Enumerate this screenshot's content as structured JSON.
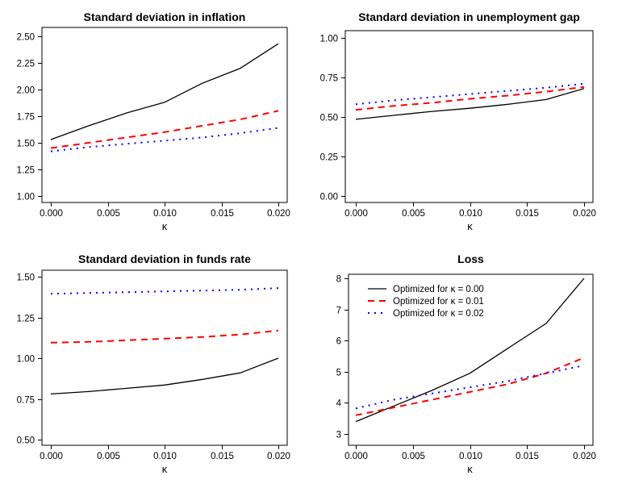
{
  "page": {
    "background": "#ffffff",
    "text_color": "#000000"
  },
  "chart_data": [
    {
      "type": "line",
      "title": "Standard deviation in inflation",
      "xlabel": "κ",
      "xlim": [
        0,
        0.02
      ],
      "ylim": [
        1.0,
        2.5
      ],
      "x_ticks": {
        "values": [
          0,
          0.005,
          0.01,
          0.015,
          0.02
        ],
        "labels": [
          "0.000",
          "0.005",
          "0.010",
          "0.015",
          "0.020"
        ]
      },
      "y_ticks": {
        "values": [
          1.0,
          1.25,
          1.5,
          1.75,
          2.0,
          2.25,
          2.5
        ],
        "labels": [
          "1.00",
          "1.25",
          "1.50",
          "1.75",
          "2.00",
          "2.25",
          "2.50"
        ]
      },
      "x": [
        0,
        0.00333,
        0.00667,
        0.01,
        0.01333,
        0.01667,
        0.02
      ],
      "series": [
        {
          "id": "k000",
          "name": "Optimized for κ = 0.00",
          "color": "#000000",
          "style": "solid",
          "values": [
            1.53,
            1.66,
            1.78,
            1.88,
            2.06,
            2.2,
            2.43
          ]
        },
        {
          "id": "k001",
          "name": "Optimized for κ = 0.01",
          "color": "#ff0000",
          "style": "dashed",
          "values": [
            1.45,
            1.5,
            1.55,
            1.6,
            1.66,
            1.72,
            1.8
          ]
        },
        {
          "id": "k002",
          "name": "Optimized for κ = 0.02",
          "color": "#0000ff",
          "style": "dotted",
          "values": [
            1.42,
            1.46,
            1.49,
            1.52,
            1.55,
            1.59,
            1.64
          ]
        }
      ],
      "legend": null,
      "grid": false
    },
    {
      "type": "line",
      "title": "Standard deviation in unemployment gap",
      "xlabel": "κ",
      "xlim": [
        0,
        0.02
      ],
      "ylim": [
        0.0,
        1.0
      ],
      "x_ticks": {
        "values": [
          0,
          0.005,
          0.01,
          0.015,
          0.02
        ],
        "labels": [
          "0.000",
          "0.005",
          "0.010",
          "0.015",
          "0.020"
        ]
      },
      "y_ticks": {
        "values": [
          0.0,
          0.25,
          0.5,
          0.75,
          1.0
        ],
        "labels": [
          "0.00",
          "0.25",
          "0.50",
          "0.75",
          "1.00"
        ]
      },
      "x": [
        0,
        0.00333,
        0.00667,
        0.01,
        0.01333,
        0.01667,
        0.02
      ],
      "series": [
        {
          "id": "k000",
          "name": "Optimized for κ = 0.00",
          "color": "#000000",
          "style": "solid",
          "values": [
            0.485,
            0.51,
            0.535,
            0.555,
            0.58,
            0.61,
            0.68
          ]
        },
        {
          "id": "k001",
          "name": "Optimized for κ = 0.01",
          "color": "#ff0000",
          "style": "dashed",
          "values": [
            0.545,
            0.57,
            0.59,
            0.615,
            0.635,
            0.66,
            0.69
          ]
        },
        {
          "id": "k002",
          "name": "Optimized for κ = 0.02",
          "color": "#0000ff",
          "style": "dotted",
          "values": [
            0.58,
            0.605,
            0.625,
            0.645,
            0.665,
            0.685,
            0.71
          ]
        }
      ],
      "legend": null,
      "grid": false
    },
    {
      "type": "line",
      "title": "Standard deviation in funds rate",
      "xlabel": "κ",
      "xlim": [
        0,
        0.02
      ],
      "ylim": [
        0.5,
        1.5
      ],
      "x_ticks": {
        "values": [
          0,
          0.005,
          0.01,
          0.015,
          0.02
        ],
        "labels": [
          "0.000",
          "0.005",
          "0.010",
          "0.015",
          "0.020"
        ]
      },
      "y_ticks": {
        "values": [
          0.5,
          0.75,
          1.0,
          1.25,
          1.5
        ],
        "labels": [
          "0.50",
          "0.75",
          "1.00",
          "1.25",
          "1.50"
        ]
      },
      "x": [
        0,
        0.00333,
        0.00667,
        0.01,
        0.01333,
        0.01667,
        0.02
      ],
      "series": [
        {
          "id": "k000",
          "name": "Optimized for κ = 0.00",
          "color": "#000000",
          "style": "solid",
          "values": [
            0.78,
            0.795,
            0.815,
            0.835,
            0.87,
            0.91,
            1.0
          ]
        },
        {
          "id": "k001",
          "name": "Optimized for κ = 0.01",
          "color": "#ff0000",
          "style": "dashed",
          "values": [
            1.095,
            1.1,
            1.11,
            1.12,
            1.13,
            1.145,
            1.17
          ]
        },
        {
          "id": "k002",
          "name": "Optimized for κ = 0.02",
          "color": "#0000ff",
          "style": "dotted",
          "values": [
            1.395,
            1.4,
            1.405,
            1.41,
            1.415,
            1.42,
            1.43
          ]
        }
      ],
      "legend": null,
      "grid": false
    },
    {
      "type": "line",
      "title": "Loss",
      "xlabel": "κ",
      "xlim": [
        0,
        0.02
      ],
      "ylim": [
        3,
        8
      ],
      "x_ticks": {
        "values": [
          0,
          0.005,
          0.01,
          0.015,
          0.02
        ],
        "labels": [
          "0.000",
          "0.005",
          "0.010",
          "0.015",
          "0.020"
        ]
      },
      "y_ticks": {
        "values": [
          3,
          4,
          5,
          6,
          7,
          8
        ],
        "labels": [
          "3",
          "4",
          "5",
          "6",
          "7",
          "8"
        ]
      },
      "x": [
        0,
        0.00333,
        0.00667,
        0.01,
        0.01333,
        0.01667,
        0.02
      ],
      "series": [
        {
          "id": "k000",
          "name": "Optimized for κ = 0.00",
          "color": "#000000",
          "style": "solid",
          "values": [
            3.4,
            3.9,
            4.4,
            4.95,
            5.75,
            6.55,
            8.0
          ]
        },
        {
          "id": "k001",
          "name": "Optimized for κ = 0.01",
          "color": "#ff0000",
          "style": "dashed",
          "values": [
            3.6,
            3.85,
            4.1,
            4.35,
            4.6,
            4.95,
            5.45
          ]
        },
        {
          "id": "k002",
          "name": "Optimized for κ = 0.02",
          "color": "#0000ff",
          "style": "dotted",
          "values": [
            3.82,
            4.1,
            4.3,
            4.5,
            4.7,
            4.95,
            5.2
          ]
        }
      ],
      "legend": {
        "position": "top-left",
        "entries": [
          "Optimized for κ = 0.00",
          "Optimized for κ = 0.01",
          "Optimized for κ = 0.02"
        ]
      },
      "grid": false
    }
  ]
}
